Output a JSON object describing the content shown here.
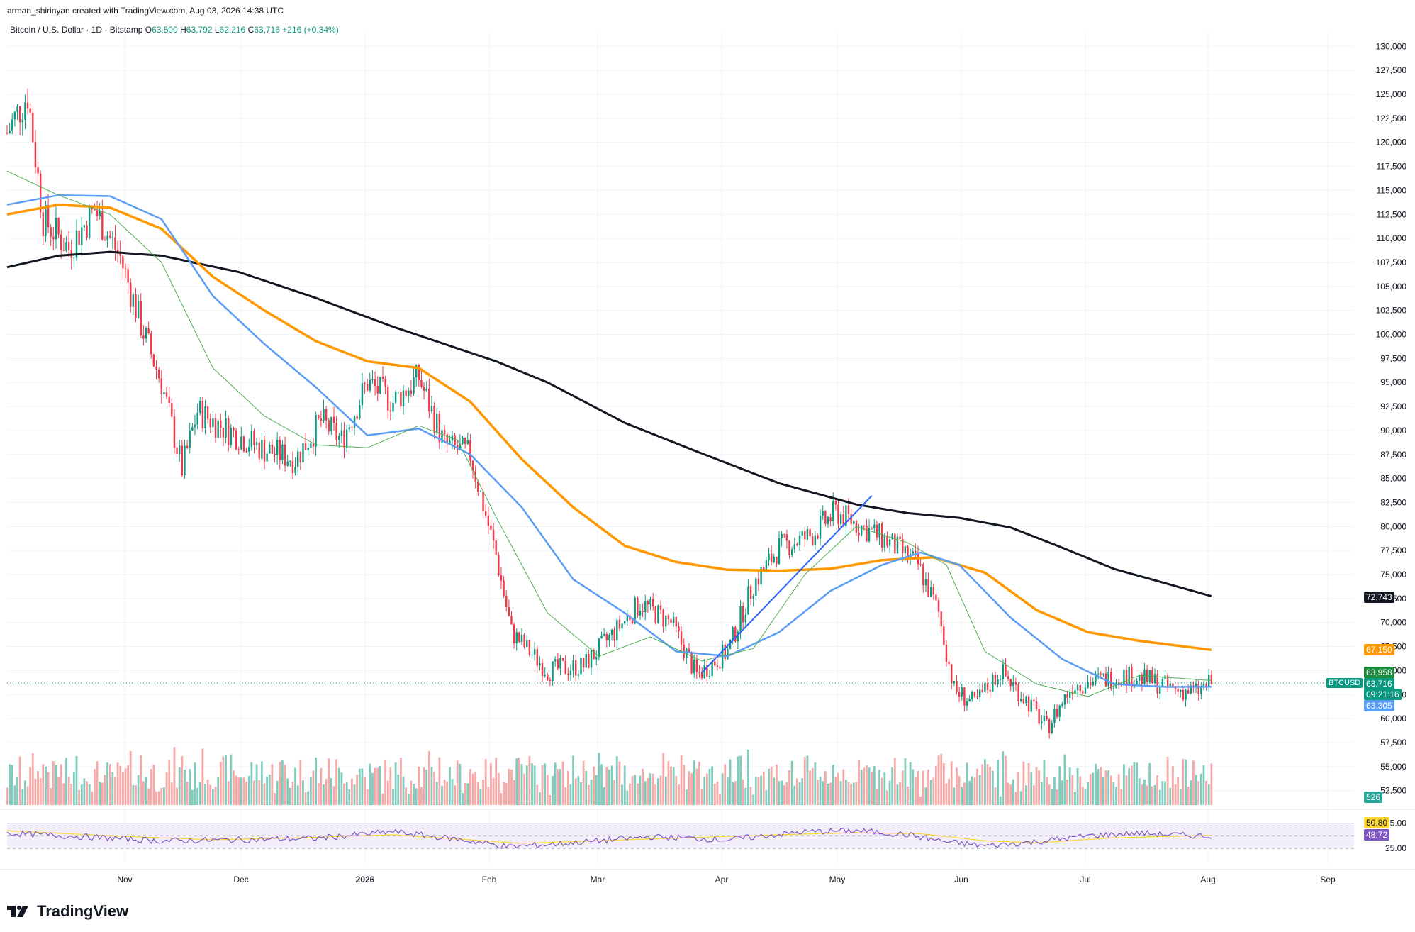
{
  "header": {
    "created_line": "arman_shirinyan created with TradingView.com, Aug 03, 2026 14:38 UTC",
    "symbol_line": "Bitcoin / U.S. Dollar · 1D · Bitstamp",
    "o_label": "O",
    "o_value": "63,500",
    "h_label": "H",
    "h_value": "63,792",
    "l_label": "L",
    "l_value": "62,216",
    "c_label": "C",
    "c_value": "63,716",
    "change": "+216 (+0.34%)"
  },
  "brand": {
    "logo_text": "TradingView",
    "logo_icon": "tradingview-logo-icon"
  },
  "colors": {
    "up": "#089981",
    "down": "#f23645",
    "up_vol": "#7fccbf",
    "down_vol": "#f7a9a7",
    "ma200": "#131722",
    "ma100": "#ff9800",
    "ma50": "#5b9cf6",
    "ma20": "#4caf50",
    "trendline": "#2962ff",
    "rsi": "#7e57c2",
    "rsi_ma": "#fdd835",
    "rsi_band": "#ede7f6"
  },
  "price_tags": {
    "ma200": "72,743",
    "ma100": "67,150",
    "ma20": "63,958",
    "close": "63,716",
    "countdown": "09:21:16",
    "ma50": "63,305",
    "symbol": "BTCUSD",
    "volume": "526",
    "rsi_ma": "50.80",
    "rsi": "48.72"
  },
  "chart_data": {
    "type": "candlestick",
    "title": "Bitcoin / U.S. Dollar · 1D · Bitstamp",
    "y_axis_ticks": [
      "130,000",
      "127,500",
      "125,000",
      "122,500",
      "120,000",
      "117,500",
      "115,000",
      "112,500",
      "110,000",
      "107,500",
      "105,000",
      "102,500",
      "100,000",
      "97,500",
      "95,000",
      "92,500",
      "90,000",
      "87,500",
      "85,000",
      "82,500",
      "80,000",
      "77,500",
      "75,000",
      "72,500",
      "70,000",
      "67,500",
      "65,000",
      "62,500",
      "60,000",
      "57,500",
      "55,000",
      "52,500"
    ],
    "ylim": [
      51000,
      131500
    ],
    "x_axis_ticks": [
      "Nov",
      "Dec",
      "2026",
      "Feb",
      "Mar",
      "Apr",
      "May",
      "Jun",
      "Jul",
      "Aug",
      "Sep"
    ],
    "rsi_axis_ticks": [
      "75.00",
      "25.00"
    ],
    "series": [
      {
        "name": "MA200",
        "color": "#131722",
        "points": [
          [
            0,
            107000
          ],
          [
            20,
            108200
          ],
          [
            40,
            108600
          ],
          [
            60,
            108200
          ],
          [
            90,
            106500
          ],
          [
            120,
            103800
          ],
          [
            150,
            100800
          ],
          [
            170,
            99000
          ],
          [
            190,
            97200
          ],
          [
            210,
            95000
          ],
          [
            240,
            90800
          ],
          [
            270,
            87600
          ],
          [
            300,
            84500
          ],
          [
            330,
            82300
          ],
          [
            350,
            81400
          ],
          [
            370,
            80900
          ],
          [
            390,
            79900
          ],
          [
            410,
            77800
          ],
          [
            430,
            75600
          ],
          [
            450,
            74100
          ],
          [
            468,
            72743
          ]
        ]
      },
      {
        "name": "MA100",
        "color": "#ff9800",
        "points": [
          [
            0,
            112500
          ],
          [
            20,
            113500
          ],
          [
            40,
            113200
          ],
          [
            60,
            111000
          ],
          [
            80,
            106000
          ],
          [
            100,
            102500
          ],
          [
            120,
            99300
          ],
          [
            140,
            97200
          ],
          [
            160,
            96500
          ],
          [
            180,
            93000
          ],
          [
            200,
            87000
          ],
          [
            220,
            82000
          ],
          [
            240,
            78000
          ],
          [
            260,
            76300
          ],
          [
            280,
            75500
          ],
          [
            300,
            75400
          ],
          [
            320,
            75600
          ],
          [
            340,
            76500
          ],
          [
            360,
            76800
          ],
          [
            380,
            75200
          ],
          [
            400,
            71300
          ],
          [
            420,
            69000
          ],
          [
            440,
            68100
          ],
          [
            468,
            67150
          ]
        ]
      },
      {
        "name": "MA50",
        "color": "#5b9cf6",
        "points": [
          [
            0,
            113500
          ],
          [
            20,
            114500
          ],
          [
            40,
            114400
          ],
          [
            60,
            112000
          ],
          [
            80,
            104000
          ],
          [
            100,
            99000
          ],
          [
            120,
            94500
          ],
          [
            140,
            89500
          ],
          [
            160,
            90200
          ],
          [
            180,
            87500
          ],
          [
            200,
            82000
          ],
          [
            220,
            74500
          ],
          [
            240,
            71000
          ],
          [
            260,
            67000
          ],
          [
            280,
            66500
          ],
          [
            300,
            69000
          ],
          [
            320,
            73300
          ],
          [
            340,
            76000
          ],
          [
            355,
            77300
          ],
          [
            370,
            76000
          ],
          [
            390,
            70500
          ],
          [
            410,
            66200
          ],
          [
            430,
            63600
          ],
          [
            450,
            63300
          ],
          [
            468,
            63305
          ]
        ]
      },
      {
        "name": "MA20",
        "color": "#4caf50",
        "points": [
          [
            0,
            117000
          ],
          [
            20,
            114500
          ],
          [
            40,
            112500
          ],
          [
            60,
            107500
          ],
          [
            80,
            96500
          ],
          [
            100,
            91500
          ],
          [
            120,
            88500
          ],
          [
            140,
            88200
          ],
          [
            160,
            90500
          ],
          [
            175,
            89000
          ],
          [
            190,
            81000
          ],
          [
            210,
            71000
          ],
          [
            230,
            66500
          ],
          [
            250,
            68500
          ],
          [
            270,
            66000
          ],
          [
            290,
            67300
          ],
          [
            310,
            75000
          ],
          [
            330,
            80000
          ],
          [
            350,
            78300
          ],
          [
            365,
            76000
          ],
          [
            380,
            67000
          ],
          [
            400,
            63600
          ],
          [
            420,
            62300
          ],
          [
            440,
            64500
          ],
          [
            468,
            63958
          ]
        ]
      },
      {
        "name": "Close",
        "color": "#089981",
        "points": [
          [
            0,
            121000
          ],
          [
            8,
            125000
          ],
          [
            14,
            112000
          ],
          [
            24,
            109000
          ],
          [
            34,
            113000
          ],
          [
            44,
            108000
          ],
          [
            52,
            101000
          ],
          [
            60,
            95000
          ],
          [
            68,
            86000
          ],
          [
            74,
            92000
          ],
          [
            86,
            90000
          ],
          [
            100,
            88000
          ],
          [
            112,
            87000
          ],
          [
            122,
            91000
          ],
          [
            130,
            89000
          ],
          [
            140,
            95000
          ],
          [
            150,
            93000
          ],
          [
            160,
            95500
          ],
          [
            170,
            88500
          ],
          [
            180,
            87500
          ],
          [
            190,
            77000
          ],
          [
            196,
            69000
          ],
          [
            210,
            65000
          ],
          [
            224,
            65500
          ],
          [
            236,
            69000
          ],
          [
            246,
            72000
          ],
          [
            258,
            70000
          ],
          [
            268,
            64500
          ],
          [
            280,
            67000
          ],
          [
            290,
            74000
          ],
          [
            300,
            77800
          ],
          [
            312,
            79000
          ],
          [
            322,
            81500
          ],
          [
            332,
            80000
          ],
          [
            342,
            78500
          ],
          [
            354,
            76000
          ],
          [
            362,
            71000
          ],
          [
            368,
            63000
          ],
          [
            376,
            61500
          ],
          [
            386,
            65000
          ],
          [
            396,
            62000
          ],
          [
            404,
            59000
          ],
          [
            414,
            63500
          ],
          [
            424,
            64000
          ],
          [
            434,
            64500
          ],
          [
            444,
            64000
          ],
          [
            454,
            63000
          ],
          [
            462,
            62800
          ],
          [
            468,
            63716
          ]
        ]
      },
      {
        "name": "RSI",
        "color": "#7e57c2",
        "points": [
          [
            0,
            55
          ],
          [
            30,
            48
          ],
          [
            60,
            40
          ],
          [
            90,
            42
          ],
          [
            120,
            45
          ],
          [
            150,
            58
          ],
          [
            180,
            40
          ],
          [
            195,
            28
          ],
          [
            220,
            36
          ],
          [
            250,
            48
          ],
          [
            280,
            42
          ],
          [
            310,
            58
          ],
          [
            330,
            60
          ],
          [
            350,
            52
          ],
          [
            365,
            38
          ],
          [
            380,
            30
          ],
          [
            400,
            38
          ],
          [
            420,
            50
          ],
          [
            440,
            55
          ],
          [
            468,
            48.72
          ]
        ]
      },
      {
        "name": "RSI MA",
        "color": "#fdd835",
        "points": [
          [
            0,
            60
          ],
          [
            40,
            50
          ],
          [
            80,
            42
          ],
          [
            120,
            47
          ],
          [
            150,
            52
          ],
          [
            180,
            42
          ],
          [
            200,
            35
          ],
          [
            240,
            42
          ],
          [
            270,
            47
          ],
          [
            300,
            52
          ],
          [
            330,
            56
          ],
          [
            355,
            54
          ],
          [
            380,
            40
          ],
          [
            400,
            36
          ],
          [
            430,
            46
          ],
          [
            468,
            50.8
          ]
        ]
      }
    ],
    "trendline": {
      "from": [
        270,
        64800
      ],
      "to": [
        336,
        83200
      ]
    },
    "grid": true
  }
}
